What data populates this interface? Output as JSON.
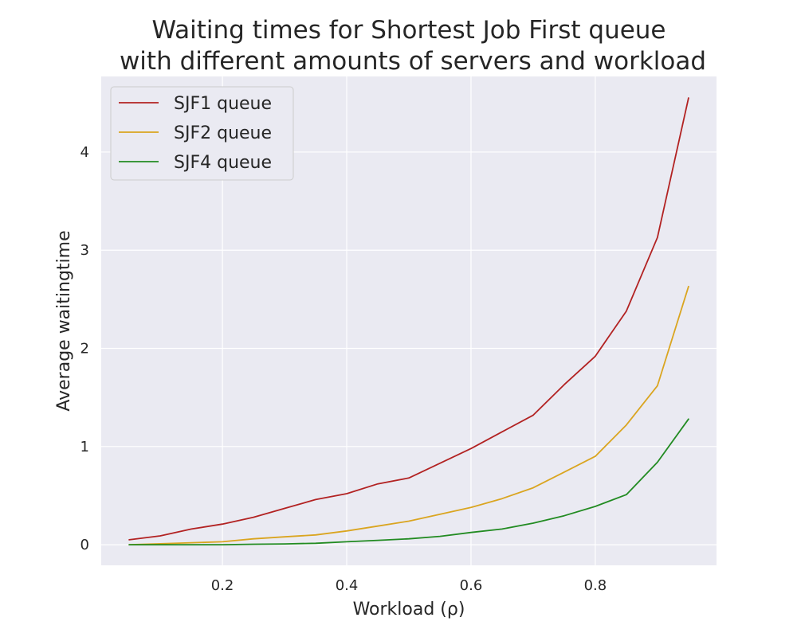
{
  "chart_data": {
    "type": "line",
    "title_lines": [
      "Waiting times for Shortest Job First queue",
      "with different amounts of servers and workload"
    ],
    "xlabel": "Workload (ρ)",
    "ylabel": "Average waitingtime",
    "xlim": [
      0.005,
      0.995
    ],
    "ylim": [
      -0.21,
      4.77
    ],
    "xticks": [
      0.2,
      0.4,
      0.6,
      0.8
    ],
    "xtick_labels": [
      "0.2",
      "0.4",
      "0.6",
      "0.8"
    ],
    "yticks": [
      0,
      1,
      2,
      3,
      4
    ],
    "ytick_labels": [
      "0",
      "1",
      "2",
      "3",
      "4"
    ],
    "grid": true,
    "background": "#eaeaf2",
    "legend_position": "top-left",
    "x": [
      0.05,
      0.1,
      0.15,
      0.2,
      0.25,
      0.3,
      0.35,
      0.4,
      0.45,
      0.5,
      0.55,
      0.6,
      0.65,
      0.7,
      0.75,
      0.8,
      0.85,
      0.9,
      0.95
    ],
    "series": [
      {
        "name": "SJF1 queue",
        "color": "#b22222",
        "values": [
          0.05,
          0.09,
          0.16,
          0.21,
          0.28,
          0.37,
          0.46,
          0.52,
          0.62,
          0.68,
          0.83,
          0.98,
          1.15,
          1.32,
          1.63,
          1.92,
          2.38,
          3.13,
          4.55
        ]
      },
      {
        "name": "SJF2 queue",
        "color": "#daa520",
        "values": [
          0.0,
          0.01,
          0.02,
          0.03,
          0.06,
          0.08,
          0.1,
          0.14,
          0.19,
          0.24,
          0.31,
          0.38,
          0.47,
          0.58,
          0.74,
          0.9,
          1.22,
          1.62,
          2.63
        ]
      },
      {
        "name": "SJF4 queue",
        "color": "#228b22",
        "values": [
          0.0,
          0.0,
          0.0,
          0.0,
          0.005,
          0.008,
          0.015,
          0.03,
          0.045,
          0.06,
          0.085,
          0.125,
          0.16,
          0.22,
          0.295,
          0.39,
          0.51,
          0.84,
          1.28
        ]
      }
    ]
  }
}
